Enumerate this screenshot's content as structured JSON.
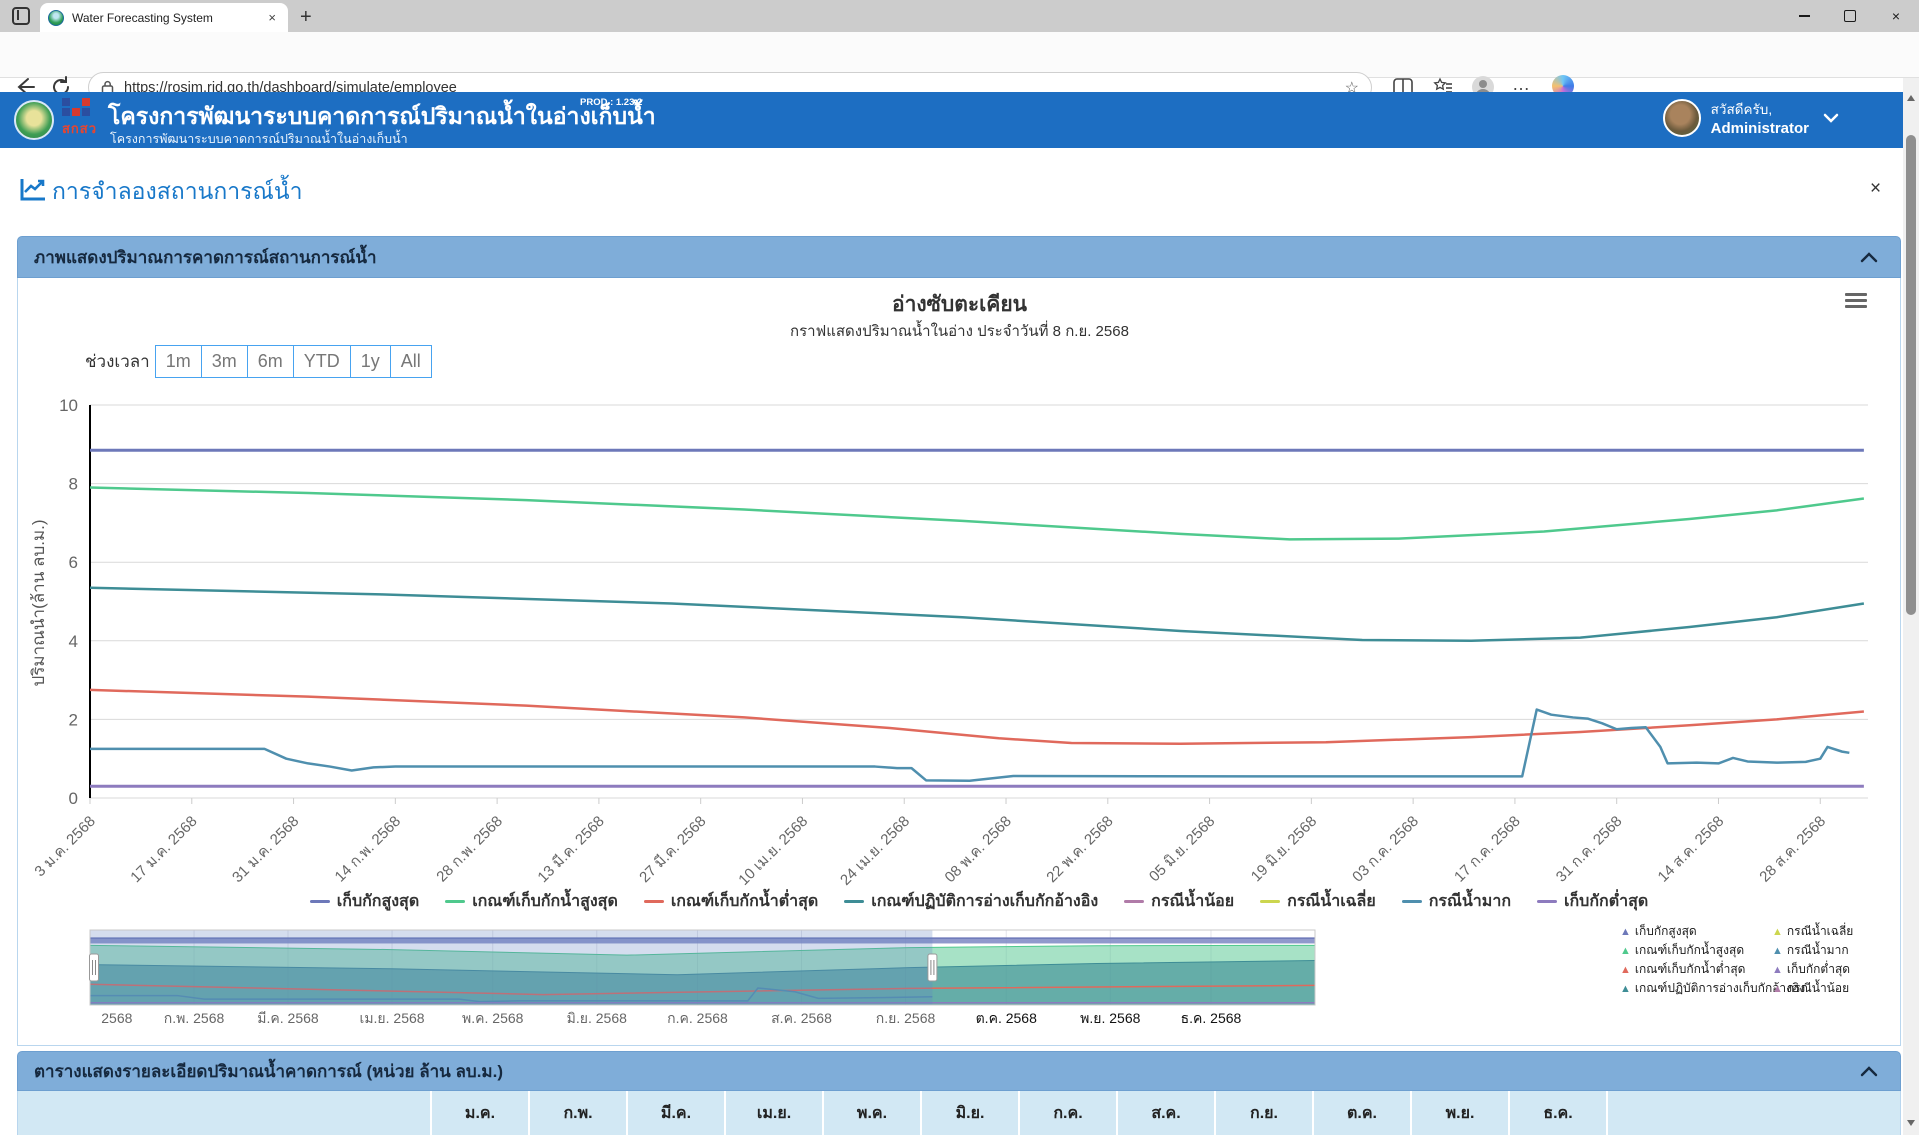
{
  "browser": {
    "tab_title": "Water Forecasting System",
    "url": "https://rosim.rid.go.th/dashboard/simulate/employee"
  },
  "header": {
    "title": "โครงการพัฒนาระบบคาดการณ์ปริมาณน้ำในอ่างเก็บน้ำ",
    "version_badge": "PROD : 1.23.2",
    "subtitle": "โครงการพัฒนาระบบคาดการณ์ปริมาณน้ำในอ่างเก็บน้ำ",
    "logo_text": "สกสว",
    "greeting": "สวัสดีครับ,",
    "username": "Administrator"
  },
  "page": {
    "title": "การจำลองสถานการณ์น้ำ",
    "close_label": "×"
  },
  "chart_panel": {
    "header": "ภาพแสดงปริมาณการคาดการณ์สถานการณ์น้ำ"
  },
  "table_panel": {
    "header": "ตารางแสดงรายละเอียดปริมาณน้ำคาดการณ์ (หน่วย ล้าน ลบ.ม.)",
    "columns": [
      "ม.ค.",
      "ก.พ.",
      "มี.ค.",
      "เม.ย.",
      "พ.ค.",
      "มิ.ย.",
      "ก.ค.",
      "ส.ค.",
      "ก.ย.",
      "ต.ค.",
      "พ.ย.",
      "ธ.ค."
    ]
  },
  "chart_data": {
    "type": "line",
    "title": "อ่างซับตะเคียน",
    "subtitle": "กราฟแสดงปริมาณน้ำในอ่าง ประจำวันที่ 8 ก.ย. 2568",
    "range_label": "ช่วงเวลา",
    "range_buttons": [
      "1m",
      "3m",
      "6m",
      "YTD",
      "1y",
      "All"
    ],
    "ylabel": "ปริมาณน้ำ(ล้าน ลบ.ม.)",
    "ylim": [
      0,
      10
    ],
    "yticks": [
      0,
      2,
      4,
      6,
      8,
      10
    ],
    "grid": true,
    "xticklabels": [
      "3 ม.ค. 2568",
      "17 ม.ค. 2568",
      "31 ม.ค. 2568",
      "14 ก.พ. 2568",
      "28 ก.พ. 2568",
      "13 มี.ค. 2568",
      "27 มี.ค. 2568",
      "10 เม.ย. 2568",
      "24 เม.ย. 2568",
      "08 พ.ค. 2568",
      "22 พ.ค. 2568",
      "05 มิ.ย. 2568",
      "19 มิ.ย. 2568",
      "03 ก.ค. 2568",
      "17 ก.ค. 2568",
      "31 ก.ค. 2568",
      "14 ส.ค. 2568",
      "28 ส.ค. 2568"
    ],
    "xtick_interval_days": 14,
    "legend": [
      {
        "name": "เก็บกักสูงสุด",
        "color": "#6d78b9"
      },
      {
        "name": "เกณฑ์เก็บกักน้ำสูงสุด",
        "color": "#4fc98d"
      },
      {
        "name": "เกณฑ์เก็บกักน้ำต่ำสุด",
        "color": "#e0695c"
      },
      {
        "name": "เกณฑ์ปฏิบัติการอ่างเก็บกักอ้างอิง",
        "color": "#3e8d96"
      },
      {
        "name": "กรณีน้ำน้อย",
        "color": "#b07ba8"
      },
      {
        "name": "กรณีน้ำเฉลี่ย",
        "color": "#ccd64f"
      },
      {
        "name": "กรณีน้ำมาก",
        "color": "#4f8fae"
      },
      {
        "name": "เก็บกักต่ำสุด",
        "color": "#8d7bbe"
      }
    ],
    "series": [
      {
        "name": "เก็บกักสูงสุด",
        "color": "#6d78b9",
        "width": 3,
        "points": [
          [
            0,
            8.85
          ],
          [
            244,
            8.85
          ]
        ]
      },
      {
        "name": "เกณฑ์เก็บกักน้ำสูงสุด",
        "color": "#4fc98d",
        "width": 2.5,
        "points": [
          [
            0,
            7.9
          ],
          [
            30,
            7.76
          ],
          [
            60,
            7.58
          ],
          [
            90,
            7.34
          ],
          [
            120,
            7.05
          ],
          [
            150,
            6.72
          ],
          [
            165,
            6.58
          ],
          [
            180,
            6.6
          ],
          [
            200,
            6.78
          ],
          [
            220,
            7.1
          ],
          [
            232,
            7.32
          ],
          [
            244,
            7.62
          ]
        ]
      },
      {
        "name": "เกณฑ์ปฏิบัติการอ่างเก็บกักอ้างอิง",
        "color": "#3e8d96",
        "width": 2.5,
        "points": [
          [
            0,
            5.35
          ],
          [
            40,
            5.18
          ],
          [
            80,
            4.95
          ],
          [
            120,
            4.6
          ],
          [
            150,
            4.25
          ],
          [
            175,
            4.02
          ],
          [
            190,
            4.0
          ],
          [
            205,
            4.08
          ],
          [
            220,
            4.35
          ],
          [
            232,
            4.6
          ],
          [
            244,
            4.95
          ]
        ]
      },
      {
        "name": "เกณฑ์เก็บกักน้ำต่ำสุด",
        "color": "#e0695c",
        "width": 2.5,
        "points": [
          [
            0,
            2.75
          ],
          [
            30,
            2.58
          ],
          [
            60,
            2.35
          ],
          [
            90,
            2.05
          ],
          [
            110,
            1.78
          ],
          [
            125,
            1.52
          ],
          [
            135,
            1.4
          ],
          [
            150,
            1.38
          ],
          [
            170,
            1.42
          ],
          [
            190,
            1.55
          ],
          [
            205,
            1.68
          ],
          [
            220,
            1.85
          ],
          [
            232,
            2.0
          ],
          [
            244,
            2.2
          ]
        ]
      },
      {
        "name": "กรณีน้ำมาก",
        "color": "#4f8fae",
        "width": 2.5,
        "points": [
          [
            0,
            1.25
          ],
          [
            24,
            1.25
          ],
          [
            27,
            1.0
          ],
          [
            30,
            0.88
          ],
          [
            33,
            0.8
          ],
          [
            36,
            0.7
          ],
          [
            39,
            0.78
          ],
          [
            42,
            0.8
          ],
          [
            108,
            0.8
          ],
          [
            111,
            0.76
          ],
          [
            113,
            0.76
          ],
          [
            115,
            0.45
          ],
          [
            121,
            0.44
          ],
          [
            124,
            0.5
          ],
          [
            127,
            0.56
          ],
          [
            160,
            0.55
          ],
          [
            197,
            0.55
          ],
          [
            199,
            2.25
          ],
          [
            201,
            2.12
          ],
          [
            204,
            2.05
          ],
          [
            206,
            2.02
          ],
          [
            208,
            1.9
          ],
          [
            210,
            1.75
          ],
          [
            212,
            1.78
          ],
          [
            214,
            1.8
          ],
          [
            216,
            1.3
          ],
          [
            217,
            0.88
          ],
          [
            221,
            0.9
          ],
          [
            224,
            0.88
          ],
          [
            226,
            1.02
          ],
          [
            228,
            0.93
          ],
          [
            232,
            0.9
          ],
          [
            236,
            0.92
          ],
          [
            238,
            1.0
          ],
          [
            239,
            1.3
          ],
          [
            241,
            1.18
          ],
          [
            242,
            1.15
          ]
        ]
      },
      {
        "name": "เก็บกักต่ำสุด",
        "color": "#8d7bbe",
        "width": 3,
        "points": [
          [
            0,
            0.3
          ],
          [
            244,
            0.3
          ]
        ]
      }
    ],
    "navigator": {
      "xlabels": [
        {
          "label": "2568",
          "day": 8,
          "color": "#666"
        },
        {
          "label": "ก.พ. 2568",
          "day": 31,
          "color": "#666"
        },
        {
          "label": "มี.ค. 2568",
          "day": 59,
          "color": "#666"
        },
        {
          "label": "เม.ย. 2568",
          "day": 90,
          "color": "#666"
        },
        {
          "label": "พ.ค. 2568",
          "day": 120,
          "color": "#666"
        },
        {
          "label": "มิ.ย. 2568",
          "day": 151,
          "color": "#666"
        },
        {
          "label": "ก.ค. 2568",
          "day": 181,
          "color": "#666"
        },
        {
          "label": "ส.ค. 2568",
          "day": 212,
          "color": "#666"
        },
        {
          "label": "ก.ย. 2568",
          "day": 243,
          "color": "#666"
        },
        {
          "label": "ต.ค. 2568",
          "day": 273,
          "color": "#111"
        },
        {
          "label": "พ.ย. 2568",
          "day": 304,
          "color": "#111"
        },
        {
          "label": "ธ.ค. 2568",
          "day": 334,
          "color": "#111"
        }
      ],
      "selected_day_range": [
        0,
        251
      ],
      "band": {
        "name": "เก็บกักสูงสุด",
        "fill": "rgba(125,135,195,0.85)",
        "stroke": "#6d78b9",
        "y": [
          8.15,
          8.85
        ]
      },
      "areas": [
        {
          "name": "เกณฑ์เก็บกักน้ำสูงสุด",
          "fill": "rgba(94,203,151,0.55)",
          "stroke": "#4fc98d",
          "points": [
            [
              0,
              7.9
            ],
            [
              90,
              7.34
            ],
            [
              160,
              6.6
            ],
            [
              244,
              7.6
            ],
            [
              300,
              7.85
            ],
            [
              365,
              7.9
            ]
          ]
        },
        {
          "name": "เกณฑ์ปฏิบัติการอ่างเก็บกักอ้างอิง",
          "fill": "rgba(62,141,150,0.62)",
          "stroke": "#3e8d96",
          "points": [
            [
              0,
              5.35
            ],
            [
              90,
              4.8
            ],
            [
              175,
              4.0
            ],
            [
              244,
              4.95
            ],
            [
              300,
              5.5
            ],
            [
              365,
              5.9
            ]
          ]
        }
      ],
      "lines": [
        {
          "name": "เกณฑ์เก็บกักน้ำต่ำสุด",
          "color": "#e0695c",
          "points": [
            [
              0,
              2.75
            ],
            [
              135,
              1.38
            ],
            [
              244,
              2.2
            ],
            [
              365,
              2.6
            ]
          ]
        },
        {
          "name": "กรณีน้ำมาก",
          "color": "#4f8fae",
          "points": [
            [
              0,
              1.25
            ],
            [
              26,
              1.25
            ],
            [
              34,
              0.78
            ],
            [
              110,
              0.78
            ],
            [
              116,
              0.45
            ],
            [
              128,
              0.56
            ],
            [
              196,
              0.55
            ],
            [
              199,
              2.25
            ],
            [
              210,
              1.75
            ],
            [
              217,
              0.88
            ],
            [
              238,
              1.0
            ],
            [
              251,
              1.1
            ]
          ]
        },
        {
          "name": "เก็บกักต่ำสุด",
          "color": "#8d7bbe",
          "points": [
            [
              0,
              0.3
            ],
            [
              365,
              0.3
            ]
          ]
        }
      ],
      "legend": [
        {
          "name": "เก็บกักสูงสุด",
          "color": "#6d78b9"
        },
        {
          "name": "กรณีน้ำเฉลี่ย",
          "color": "#ccd64f"
        },
        {
          "name": "เกณฑ์เก็บกักน้ำสูงสุด",
          "color": "#4fc98d"
        },
        {
          "name": "กรณีน้ำมาก",
          "color": "#4f8fae"
        },
        {
          "name": "เกณฑ์เก็บกักน้ำต่ำสุด",
          "color": "#e0695c"
        },
        {
          "name": "เก็บกักต่ำสุด",
          "color": "#8d7bbe"
        },
        {
          "name": "เกณฑ์ปฏิบัติการอ่างเก็บกักอ้างอิง",
          "color": "#3e8d96"
        },
        {
          "name": "กรณีน้ำน้อย",
          "color": "#b07ba8"
        }
      ]
    }
  }
}
